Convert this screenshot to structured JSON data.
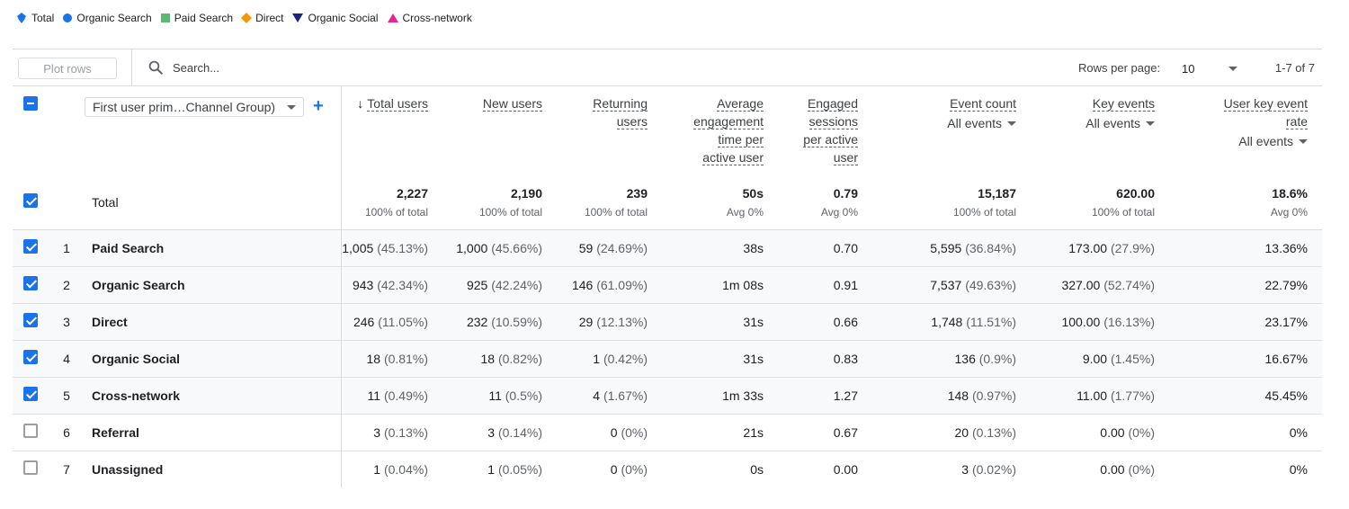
{
  "legend": [
    {
      "label": "Total",
      "icon": "total-icon",
      "color": "#1a73e8"
    },
    {
      "label": "Organic Search",
      "icon": "circle",
      "color": "#1a73e8"
    },
    {
      "label": "Paid Search",
      "icon": "square",
      "color": "#5bb974"
    },
    {
      "label": "Direct",
      "icon": "diamond",
      "color": "#f29900"
    },
    {
      "label": "Organic Social",
      "icon": "triangle-down",
      "color": "#1a237e"
    },
    {
      "label": "Cross-network",
      "icon": "triangle-up",
      "color": "#e52592"
    }
  ],
  "toolbar": {
    "plot_rows_label": "Plot rows",
    "search_placeholder": "Search...",
    "rows_per_page_label": "Rows per page:",
    "rows_per_page_value": "10",
    "pagination_text": "1-7 of 7"
  },
  "table": {
    "dimension_select": "First user prim…Channel Group)",
    "columns": [
      {
        "lines": [
          "Total users"
        ],
        "sorted": true,
        "sub": ""
      },
      {
        "lines": [
          "New users"
        ],
        "sorted": false,
        "sub": ""
      },
      {
        "lines": [
          "Returning",
          "users"
        ],
        "sorted": false,
        "sub": ""
      },
      {
        "lines": [
          "Average",
          "engagement",
          "time per",
          "active user"
        ],
        "sorted": false,
        "sub": ""
      },
      {
        "lines": [
          "Engaged",
          "sessions",
          "per active",
          "user"
        ],
        "sorted": false,
        "sub": ""
      },
      {
        "lines": [
          "Event count"
        ],
        "sorted": false,
        "sub": "All events"
      },
      {
        "lines": [
          "Key events"
        ],
        "sorted": false,
        "sub": "All events"
      },
      {
        "lines": [
          "User key event",
          "rate"
        ],
        "sorted": false,
        "sub": "All events"
      }
    ],
    "total": {
      "label": "Total",
      "values": [
        "2,227",
        "2,190",
        "239",
        "50s",
        "0.79",
        "15,187",
        "620.00",
        "18.6%"
      ],
      "subs": [
        "100% of total",
        "100% of total",
        "100% of total",
        "Avg 0%",
        "Avg 0%",
        "100% of total",
        "100% of total",
        "Avg 0%"
      ]
    },
    "rows": [
      {
        "idx": "1",
        "checked": true,
        "name": "Paid Search",
        "cells": [
          [
            "1,005",
            "(45.13%)"
          ],
          [
            "1,000",
            "(45.66%)"
          ],
          [
            "59",
            "(24.69%)"
          ],
          [
            "38s",
            ""
          ],
          [
            "0.70",
            ""
          ],
          [
            "5,595",
            "(36.84%)"
          ],
          [
            "173.00",
            "(27.9%)"
          ],
          [
            "13.36%",
            ""
          ]
        ]
      },
      {
        "idx": "2",
        "checked": true,
        "name": "Organic Search",
        "cells": [
          [
            "943",
            "(42.34%)"
          ],
          [
            "925",
            "(42.24%)"
          ],
          [
            "146",
            "(61.09%)"
          ],
          [
            "1m 08s",
            ""
          ],
          [
            "0.91",
            ""
          ],
          [
            "7,537",
            "(49.63%)"
          ],
          [
            "327.00",
            "(52.74%)"
          ],
          [
            "22.79%",
            ""
          ]
        ]
      },
      {
        "idx": "3",
        "checked": true,
        "name": "Direct",
        "cells": [
          [
            "246",
            "(11.05%)"
          ],
          [
            "232",
            "(10.59%)"
          ],
          [
            "29",
            "(12.13%)"
          ],
          [
            "31s",
            ""
          ],
          [
            "0.66",
            ""
          ],
          [
            "1,748",
            "(11.51%)"
          ],
          [
            "100.00",
            "(16.13%)"
          ],
          [
            "23.17%",
            ""
          ]
        ]
      },
      {
        "idx": "4",
        "checked": true,
        "name": "Organic Social",
        "cells": [
          [
            "18",
            "(0.81%)"
          ],
          [
            "18",
            "(0.82%)"
          ],
          [
            "1",
            "(0.42%)"
          ],
          [
            "31s",
            ""
          ],
          [
            "0.83",
            ""
          ],
          [
            "136",
            "(0.9%)"
          ],
          [
            "9.00",
            "(1.45%)"
          ],
          [
            "16.67%",
            ""
          ]
        ]
      },
      {
        "idx": "5",
        "checked": true,
        "name": "Cross-network",
        "cells": [
          [
            "11",
            "(0.49%)"
          ],
          [
            "11",
            "(0.5%)"
          ],
          [
            "4",
            "(1.67%)"
          ],
          [
            "1m 33s",
            ""
          ],
          [
            "1.27",
            ""
          ],
          [
            "148",
            "(0.97%)"
          ],
          [
            "11.00",
            "(1.77%)"
          ],
          [
            "45.45%",
            ""
          ]
        ]
      },
      {
        "idx": "6",
        "checked": false,
        "name": "Referral",
        "cells": [
          [
            "3",
            "(0.13%)"
          ],
          [
            "3",
            "(0.14%)"
          ],
          [
            "0",
            "(0%)"
          ],
          [
            "21s",
            ""
          ],
          [
            "0.67",
            ""
          ],
          [
            "20",
            "(0.13%)"
          ],
          [
            "0.00",
            "(0%)"
          ],
          [
            "0%",
            ""
          ]
        ]
      },
      {
        "idx": "7",
        "checked": false,
        "name": "Unassigned",
        "cells": [
          [
            "1",
            "(0.04%)"
          ],
          [
            "1",
            "(0.05%)"
          ],
          [
            "0",
            "(0%)"
          ],
          [
            "0s",
            ""
          ],
          [
            "0.00",
            ""
          ],
          [
            "3",
            "(0.02%)"
          ],
          [
            "0.00",
            "(0%)"
          ],
          [
            "0%",
            ""
          ]
        ]
      }
    ]
  }
}
